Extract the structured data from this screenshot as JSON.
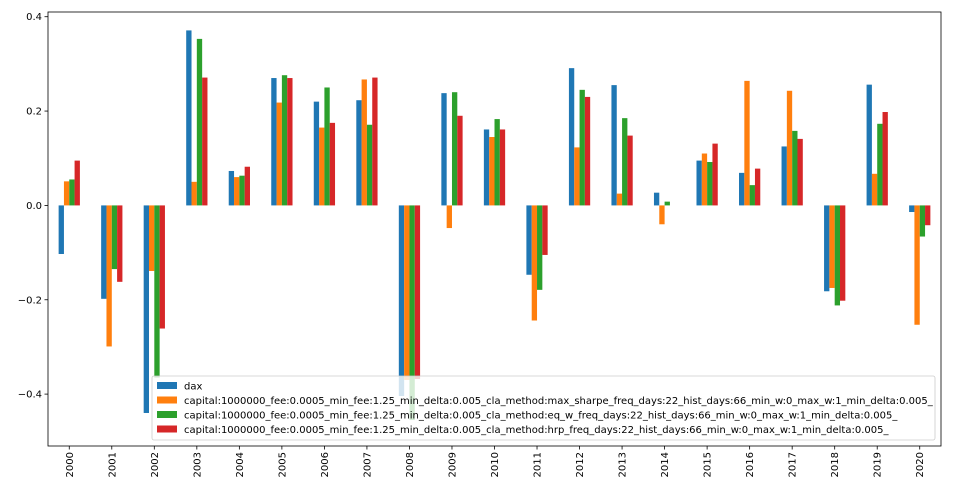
{
  "chart_data": {
    "type": "bar",
    "title": "",
    "xlabel": "",
    "ylabel": "",
    "ylim": [
      -0.51,
      0.41
    ],
    "yticks": [
      -0.4,
      -0.2,
      0.0,
      0.2,
      0.4
    ],
    "ytick_labels": [
      "−0.4",
      "−0.2",
      "0.0",
      "0.2",
      "0.4"
    ],
    "legend_position": "lower-right",
    "grid": false,
    "categories": [
      "2000",
      "2001",
      "2002",
      "2003",
      "2004",
      "2005",
      "2006",
      "2007",
      "2008",
      "2009",
      "2010",
      "2011",
      "2012",
      "2013",
      "2014",
      "2015",
      "2016",
      "2017",
      "2018",
      "2019",
      "2020"
    ],
    "series": [
      {
        "name": "dax",
        "color": "#1f77b4",
        "values": [
          -0.103,
          -0.198,
          -0.44,
          0.371,
          0.073,
          0.27,
          0.22,
          0.223,
          -0.404,
          0.238,
          0.161,
          -0.147,
          0.291,
          0.255,
          0.027,
          0.095,
          0.069,
          0.125,
          -0.182,
          0.256,
          -0.014
        ]
      },
      {
        "name": "capital:1000000_fee:0.0005_min_fee:1.25_min_delta:0.005_cla_method:max_sharpe_freq_days:22_hist_days:66_min_w:0_max_w:1_min_delta:0.005_",
        "color": "#ff7f0e",
        "values": [
          0.051,
          -0.299,
          -0.139,
          0.05,
          0.06,
          0.218,
          0.165,
          0.267,
          -0.37,
          -0.048,
          0.145,
          -0.244,
          0.123,
          0.025,
          -0.04,
          0.11,
          0.264,
          0.243,
          -0.175,
          0.067,
          -0.253
        ]
      },
      {
        "name": "capital:1000000_fee:0.0005_min_fee:1.25_min_delta:0.005_cla_method:eq_w_freq_days:22_hist_days:66_min_w:0_max_w:1_min_delta:0.005_",
        "color": "#2ca02c",
        "values": [
          0.055,
          -0.135,
          -0.365,
          0.353,
          0.063,
          0.276,
          0.25,
          0.171,
          -0.455,
          0.24,
          0.183,
          -0.179,
          0.245,
          0.185,
          0.008,
          0.092,
          0.043,
          0.158,
          -0.212,
          0.173,
          -0.066
        ]
      },
      {
        "name": "capital:1000000_fee:0.0005_min_fee:1.25_min_delta:0.005_cla_method:hrp_freq_days:22_hist_days:66_min_w:0_max_w:1_min_delta:0.005_",
        "color": "#d62728",
        "values": [
          0.095,
          -0.162,
          -0.261,
          0.271,
          0.082,
          0.27,
          0.175,
          0.271,
          -0.368,
          0.19,
          0.161,
          -0.105,
          0.23,
          0.148,
          0.0,
          0.131,
          0.078,
          0.141,
          -0.202,
          0.198,
          -0.042
        ]
      }
    ]
  }
}
